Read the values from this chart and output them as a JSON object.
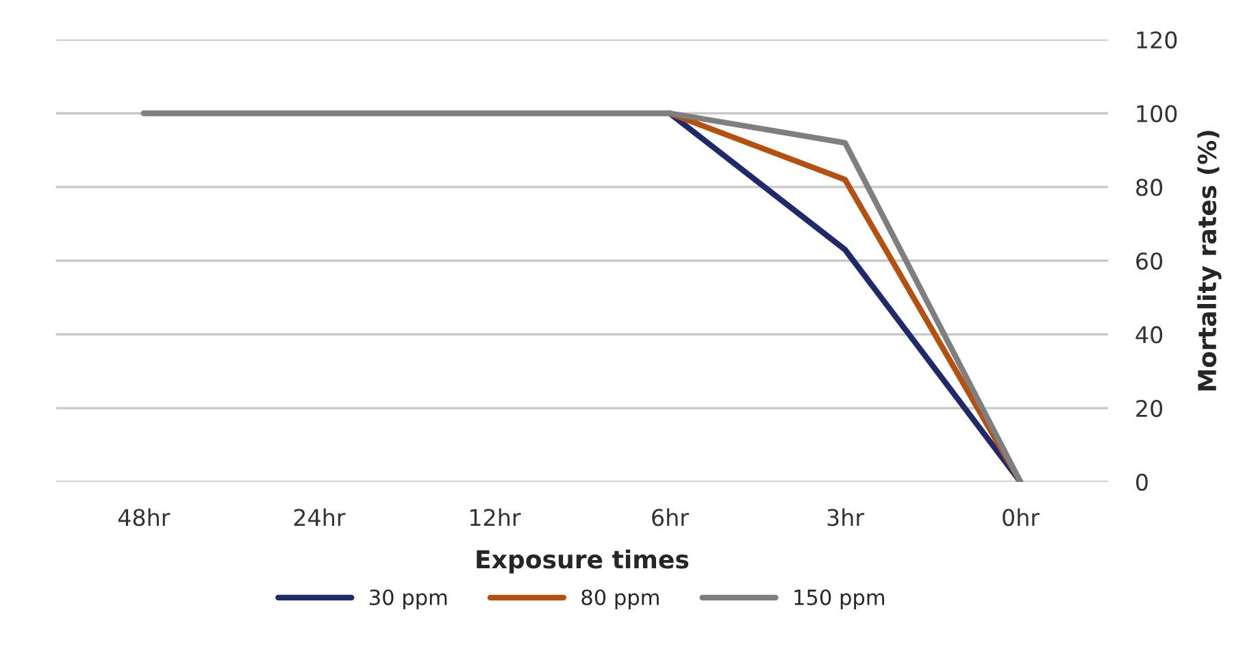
{
  "chart_data": {
    "type": "line",
    "xlabel": "Exposure times",
    "ylabel": "Mortality rates (%)",
    "categories": [
      "48hr",
      "24hr",
      "12hr",
      "6hr",
      "3hr",
      "0hr"
    ],
    "series": [
      {
        "name": "30 ppm",
        "color": "#1f2a6b",
        "values": [
          null,
          null,
          null,
          100,
          63,
          0
        ]
      },
      {
        "name": "80 ppm",
        "color": "#b5500f",
        "values": [
          null,
          null,
          null,
          100,
          82,
          0
        ]
      },
      {
        "name": "150 ppm",
        "color": "#7f7f7f",
        "values": [
          100,
          100,
          100,
          100,
          92,
          0
        ]
      }
    ],
    "ylim": [
      0,
      120
    ],
    "yticks": [
      0,
      20,
      40,
      60,
      80,
      100,
      120
    ],
    "grid": "y",
    "legend": "bottom",
    "marker": "none",
    "line_style": "solid"
  }
}
